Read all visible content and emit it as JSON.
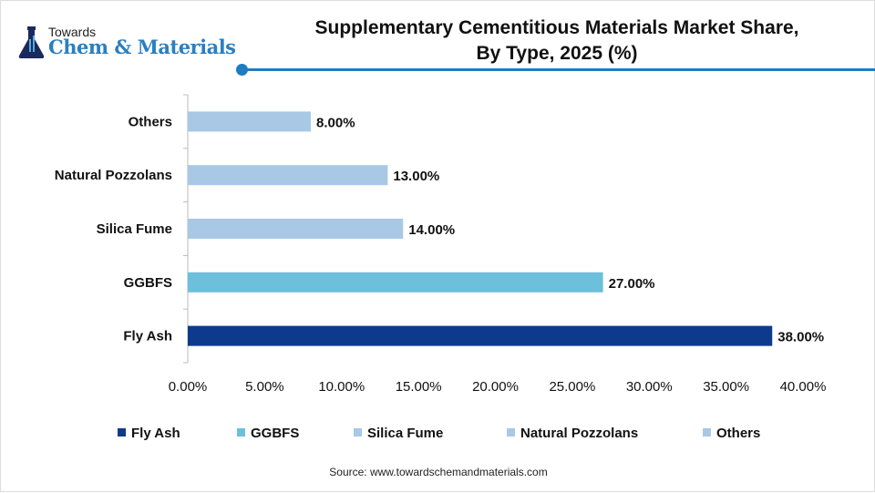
{
  "logo": {
    "small": "Towards",
    "big": "Chem & Materials"
  },
  "title_line1": "Supplementary Cementitious Materials Market Share,",
  "title_line2": "By Type, 2025 (%)",
  "source": "Source: www.towardschemandmaterials.com",
  "colors": {
    "accent": "#1f7cc2",
    "fly_ash": "#0d3a8c",
    "ggbfs": "#6cc0dc",
    "light": "#a8c8e6"
  },
  "chart_data": {
    "type": "bar",
    "orientation": "horizontal",
    "categories": [
      "Fly Ash",
      "GGBFS",
      "Silica Fume",
      "Natural Pozzolans",
      "Others"
    ],
    "values": [
      38,
      27,
      14,
      13,
      8
    ],
    "value_labels": [
      "38.00%",
      "27.00%",
      "14.00%",
      "13.00%",
      "8.00%"
    ],
    "bar_colors": [
      "#0d3a8c",
      "#6cc0dc",
      "#a8c8e6",
      "#a8c8e6",
      "#a8c8e6"
    ],
    "xlim": [
      0,
      40
    ],
    "xticks": [
      0,
      5,
      10,
      15,
      20,
      25,
      30,
      35,
      40
    ],
    "xtick_labels": [
      "0.00%",
      "5.00%",
      "10.00%",
      "15.00%",
      "20.00%",
      "25.00%",
      "30.00%",
      "35.00%",
      "40.00%"
    ],
    "grid": false,
    "legend": {
      "placement": "bottom",
      "entries": [
        "Fly Ash",
        "GGBFS",
        "Silica Fume",
        "Natural Pozzolans",
        "Others"
      ]
    }
  }
}
